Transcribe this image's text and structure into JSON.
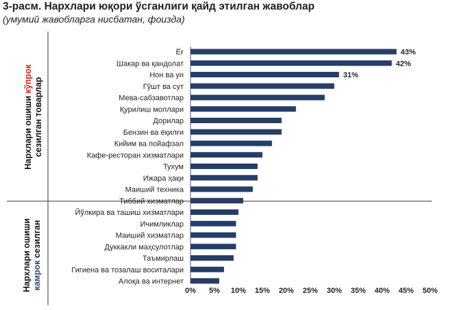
{
  "header": {
    "title": "3-расм. Нархлари юқори ўсганлиги қайд этилган жавоблар",
    "subtitle": "(умумий жавобларга нисбатан, фоизда)"
  },
  "groups": {
    "top": {
      "line1_prefix": "Нархлари ошиши ",
      "line1_highlight": "кўпрок",
      "line2": "сезилган товарлар"
    },
    "bottom": {
      "line1": "Нархлари ошиши",
      "line2_highlight": "камрок",
      "line2_suffix": " сезилган"
    }
  },
  "colors": {
    "bar": "#263e66",
    "axis": "#333333",
    "highlight_high": "#e0201b",
    "highlight_low": "#2e4a7a"
  },
  "chart_data": {
    "type": "bar",
    "orientation": "horizontal",
    "categories": [
      "Ёғ",
      "Шакар ва қандолат",
      "Нон ва ун",
      "Гўшт ва сут",
      "Мева-сабзавотлар",
      "Қурилиш моллари",
      "Дорилар",
      "Бензин ва ёқилғи",
      "Кийим ва пойафзал",
      "Кафе-ресторан хизматлари",
      "Тухум",
      "Ижара ҳақи",
      "Маиший техника",
      "Тиббий хизматлар",
      "Йўлкира ва ташиш хизматлари",
      "Ичимликлар",
      "Маиший хизматлар",
      "Дуккакли маҳсулотлар",
      "Таъмирлаш",
      "Гигиена ва тозалаш воситалари",
      "Алоқа ва интернет"
    ],
    "values": [
      43,
      42,
      31,
      30,
      28,
      22,
      19,
      19,
      17,
      15,
      14,
      14,
      13,
      11,
      10,
      9.5,
      9.5,
      9.5,
      9,
      7,
      6
    ],
    "data_labels": [
      "43%",
      "42%",
      "31%",
      "",
      "",
      "",
      "",
      "",
      "",
      "",
      "",
      "",
      "",
      "",
      "",
      "",
      "",
      "",
      "",
      "",
      ""
    ],
    "group_split_after": 14,
    "xlim": [
      0,
      50
    ],
    "xticks": [
      "0%",
      "5%",
      "10%",
      "15%",
      "20%",
      "25%",
      "30%",
      "35%",
      "40%",
      "45%",
      "50%"
    ],
    "grid": false
  }
}
